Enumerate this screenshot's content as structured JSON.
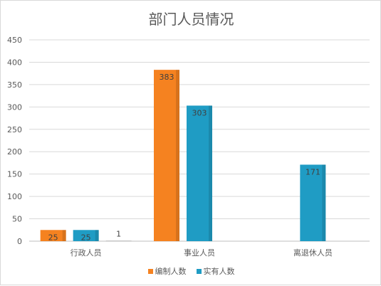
{
  "chart_data": {
    "type": "bar",
    "title": "部门人员情况",
    "categories": [
      "行政人员",
      "事业人员",
      "离退休人员"
    ],
    "series": [
      {
        "name": "编制人数",
        "values": [
          25,
          383,
          null
        ],
        "color": "#f58220"
      },
      {
        "name": "实有人数",
        "values": [
          25,
          303,
          171
        ],
        "color": "#1f9cc4"
      },
      {
        "name": "",
        "values": [
          1,
          null,
          null
        ],
        "color": "#a5a5a5"
      }
    ],
    "data_labels": [
      [
        "25",
        "383",
        ""
      ],
      [
        "25",
        "303",
        "171"
      ],
      [
        "1",
        "",
        ""
      ]
    ],
    "ylim": [
      0,
      450
    ],
    "yticks": [
      0,
      50,
      100,
      150,
      200,
      250,
      300,
      350,
      400,
      450
    ],
    "grid": true,
    "legend": "bottom"
  },
  "legend": {
    "items": [
      {
        "label": "编制人数",
        "color": "#f58220",
        "icon": "square-swatch-icon"
      },
      {
        "label": "实有人数",
        "color": "#1f9cc4",
        "icon": "square-swatch-icon"
      }
    ]
  }
}
